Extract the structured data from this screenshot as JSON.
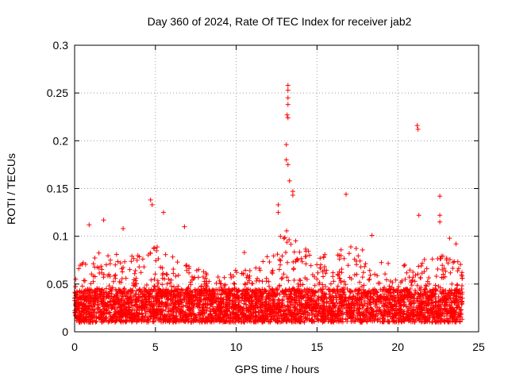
{
  "chart_data": {
    "type": "scatter",
    "title": "Day 360 of 2024, Rate Of TEC Index for receiver jab2",
    "xlabel": "GPS time / hours",
    "ylabel": "ROTI / TECUs",
    "xlim": [
      0,
      25
    ],
    "ylim": [
      0,
      0.3
    ],
    "x_ticks": [
      0,
      5,
      10,
      15,
      20,
      25
    ],
    "x_tick_labels": [
      "0",
      "5",
      "10",
      "15",
      "20",
      "25"
    ],
    "y_ticks": [
      0,
      0.05,
      0.1,
      0.15,
      0.2,
      0.25,
      0.3
    ],
    "y_tick_labels": [
      "0",
      "0.05",
      "0.1",
      "0.15",
      "0.2",
      "0.25",
      "0.3"
    ],
    "grid": true,
    "marker": "+",
    "colors": {
      "series": "#ff0000",
      "grid": "#a0a0a0",
      "axis": "#000000"
    },
    "series": [
      {
        "name": "jab2 ROTI",
        "notable_points": [
          {
            "x": 4.7,
            "y": 0.138
          },
          {
            "x": 4.8,
            "y": 0.133
          },
          {
            "x": 5.5,
            "y": 0.125
          },
          {
            "x": 6.8,
            "y": 0.11
          },
          {
            "x": 12.6,
            "y": 0.133
          },
          {
            "x": 12.6,
            "y": 0.125
          },
          {
            "x": 13.2,
            "y": 0.258
          },
          {
            "x": 13.2,
            "y": 0.253
          },
          {
            "x": 13.2,
            "y": 0.245
          },
          {
            "x": 13.2,
            "y": 0.238
          },
          {
            "x": 13.15,
            "y": 0.227
          },
          {
            "x": 13.2,
            "y": 0.224
          },
          {
            "x": 13.1,
            "y": 0.196
          },
          {
            "x": 13.1,
            "y": 0.18
          },
          {
            "x": 13.2,
            "y": 0.175
          },
          {
            "x": 13.3,
            "y": 0.158
          },
          {
            "x": 13.5,
            "y": 0.147
          },
          {
            "x": 13.5,
            "y": 0.143
          },
          {
            "x": 16.8,
            "y": 0.144
          },
          {
            "x": 21.2,
            "y": 0.216
          },
          {
            "x": 21.25,
            "y": 0.212
          },
          {
            "x": 21.3,
            "y": 0.122
          },
          {
            "x": 22.6,
            "y": 0.142
          },
          {
            "x": 22.6,
            "y": 0.122
          },
          {
            "x": 22.6,
            "y": 0.115
          },
          {
            "x": 18.4,
            "y": 0.101
          },
          {
            "x": 1.8,
            "y": 0.117
          },
          {
            "x": 0.9,
            "y": 0.112
          },
          {
            "x": 3.0,
            "y": 0.108
          },
          {
            "x": 10.5,
            "y": 0.083
          },
          {
            "x": 23.6,
            "y": 0.092
          },
          {
            "x": 23.2,
            "y": 0.098
          }
        ],
        "typical_band": {
          "baseline_min": 0.01,
          "baseline_max": 0.045,
          "time_range": [
            0,
            24
          ]
        },
        "envelope": [
          {
            "x": 0,
            "upper": 0.07
          },
          {
            "x": 1,
            "upper": 0.08
          },
          {
            "x": 2,
            "upper": 0.085
          },
          {
            "x": 3,
            "upper": 0.08
          },
          {
            "x": 4,
            "upper": 0.085
          },
          {
            "x": 5,
            "upper": 0.09
          },
          {
            "x": 6,
            "upper": 0.08
          },
          {
            "x": 7,
            "upper": 0.07
          },
          {
            "x": 8,
            "upper": 0.065
          },
          {
            "x": 9,
            "upper": 0.06
          },
          {
            "x": 10,
            "upper": 0.065
          },
          {
            "x": 11,
            "upper": 0.07
          },
          {
            "x": 12,
            "upper": 0.08
          },
          {
            "x": 13,
            "upper": 0.11
          },
          {
            "x": 14,
            "upper": 0.09
          },
          {
            "x": 15,
            "upper": 0.08
          },
          {
            "x": 16,
            "upper": 0.085
          },
          {
            "x": 17,
            "upper": 0.09
          },
          {
            "x": 18,
            "upper": 0.085
          },
          {
            "x": 19,
            "upper": 0.075
          },
          {
            "x": 20,
            "upper": 0.07
          },
          {
            "x": 21,
            "upper": 0.075
          },
          {
            "x": 22,
            "upper": 0.08
          },
          {
            "x": 23,
            "upper": 0.08
          },
          {
            "x": 24,
            "upper": 0.075
          }
        ]
      }
    ]
  }
}
